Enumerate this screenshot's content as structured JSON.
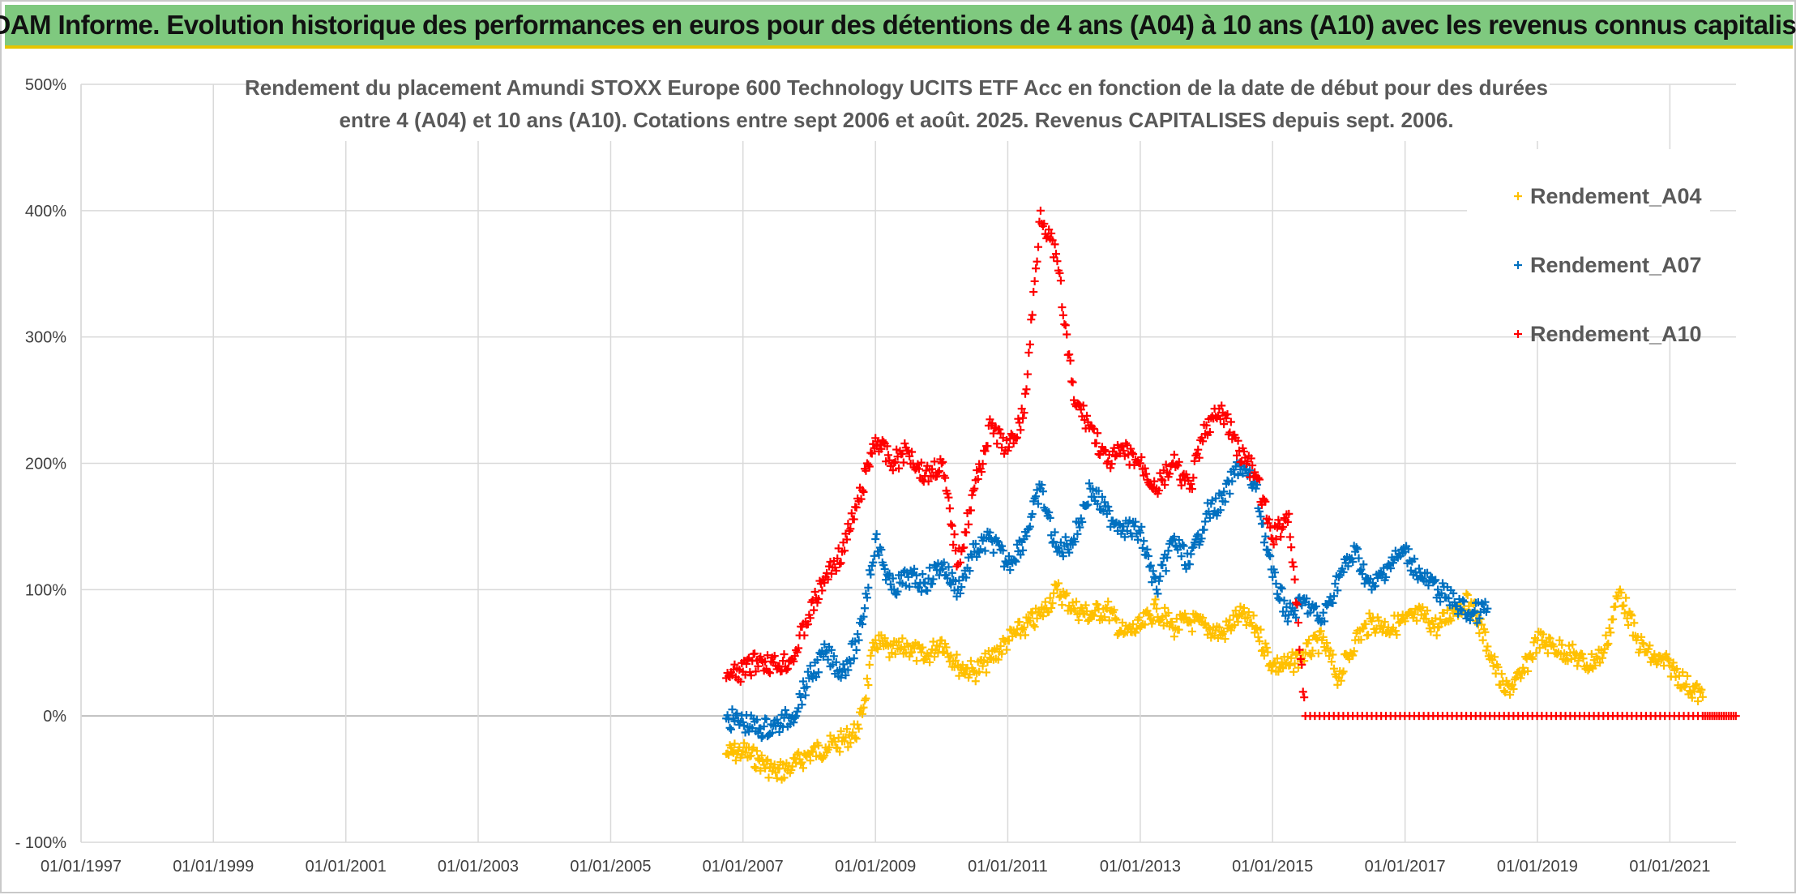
{
  "banner": {
    "title": "ADAM Informe. Evolution historique des performances en euros pour des détentions de 4 ans (A04) à 10 ans (A10) avec les revenus connus capitalisés"
  },
  "chart_data": {
    "type": "scatter",
    "title_line1": "Rendement du placement Amundi STOXX Europe 600 Technology UCITS ETF Acc en fonction de la date de début pour des durées",
    "title_line2": "entre 4 (A04) et 10 ans (A10). Cotations entre sept 2006 et août. 2025. Revenus CAPITALISES depuis sept. 2006.",
    "xlabel": "",
    "ylabel": "",
    "x_ticks": [
      "01/01/1997",
      "01/01/1999",
      "01/01/2001",
      "01/01/2003",
      "01/01/2005",
      "01/01/2007",
      "01/01/2009",
      "01/01/2011",
      "01/01/2013",
      "01/01/2015",
      "01/01/2017",
      "01/01/2019",
      "01/01/2021"
    ],
    "y_ticks": [
      "- 100%",
      "0%",
      "100%",
      "200%",
      "300%",
      "400%",
      "500%"
    ],
    "xlim": [
      "1997-01-01",
      "2022-01-01"
    ],
    "ylim": [
      -100,
      500
    ],
    "grid": true,
    "legend_position": "top-right",
    "marker": "+",
    "series": [
      {
        "name": "Rendement_A04",
        "color": "#ffc000",
        "points": [
          [
            "2006-10-01",
            -30
          ],
          [
            "2007-01-01",
            -28
          ],
          [
            "2007-04-01",
            -35
          ],
          [
            "2007-07-01",
            -45
          ],
          [
            "2007-10-01",
            -40
          ],
          [
            "2008-01-01",
            -30
          ],
          [
            "2008-04-01",
            -25
          ],
          [
            "2008-07-01",
            -20
          ],
          [
            "2008-10-01",
            -10
          ],
          [
            "2009-01-01",
            60
          ],
          [
            "2009-04-01",
            50
          ],
          [
            "2009-07-01",
            55
          ],
          [
            "2009-10-01",
            45
          ],
          [
            "2010-01-01",
            60
          ],
          [
            "2010-04-01",
            40
          ],
          [
            "2010-07-01",
            35
          ],
          [
            "2010-10-01",
            45
          ],
          [
            "2011-01-01",
            60
          ],
          [
            "2011-04-01",
            70
          ],
          [
            "2011-07-01",
            80
          ],
          [
            "2011-10-01",
            100
          ],
          [
            "2012-01-01",
            85
          ],
          [
            "2012-04-01",
            80
          ],
          [
            "2012-07-01",
            85
          ],
          [
            "2012-10-01",
            65
          ],
          [
            "2013-01-01",
            70
          ],
          [
            "2013-04-01",
            85
          ],
          [
            "2013-07-01",
            70
          ],
          [
            "2013-10-01",
            75
          ],
          [
            "2014-01-01",
            70
          ],
          [
            "2014-04-01",
            65
          ],
          [
            "2014-07-01",
            80
          ],
          [
            "2014-10-01",
            70
          ],
          [
            "2015-01-01",
            40
          ],
          [
            "2015-04-01",
            40
          ],
          [
            "2015-07-01",
            50
          ],
          [
            "2015-10-01",
            60
          ],
          [
            "2016-01-01",
            30
          ],
          [
            "2016-04-01",
            60
          ],
          [
            "2016-07-01",
            75
          ],
          [
            "2016-10-01",
            70
          ],
          [
            "2017-01-01",
            75
          ],
          [
            "2017-04-01",
            80
          ],
          [
            "2017-07-01",
            70
          ],
          [
            "2017-10-01",
            85
          ],
          [
            "2018-01-01",
            90
          ],
          [
            "2018-04-01",
            55
          ],
          [
            "2018-07-01",
            20
          ],
          [
            "2018-10-01",
            30
          ],
          [
            "2019-01-01",
            60
          ],
          [
            "2019-04-01",
            55
          ],
          [
            "2019-07-01",
            50
          ],
          [
            "2019-10-01",
            40
          ],
          [
            "2020-01-01",
            50
          ],
          [
            "2020-04-01",
            100
          ],
          [
            "2020-07-01",
            60
          ],
          [
            "2020-10-01",
            45
          ],
          [
            "2021-01-01",
            40
          ],
          [
            "2021-04-01",
            25
          ],
          [
            "2021-07-01",
            15
          ]
        ]
      },
      {
        "name": "Rendement_A07",
        "color": "#0070c0",
        "points": [
          [
            "2006-10-01",
            -2
          ],
          [
            "2007-01-01",
            -5
          ],
          [
            "2007-04-01",
            -10
          ],
          [
            "2007-07-01",
            -8
          ],
          [
            "2007-10-01",
            0
          ],
          [
            "2008-01-01",
            30
          ],
          [
            "2008-04-01",
            50
          ],
          [
            "2008-07-01",
            35
          ],
          [
            "2008-10-01",
            60
          ],
          [
            "2009-01-01",
            140
          ],
          [
            "2009-04-01",
            100
          ],
          [
            "2009-07-01",
            110
          ],
          [
            "2009-10-01",
            105
          ],
          [
            "2010-01-01",
            120
          ],
          [
            "2010-04-01",
            100
          ],
          [
            "2010-07-01",
            130
          ],
          [
            "2010-10-01",
            140
          ],
          [
            "2011-01-01",
            120
          ],
          [
            "2011-04-01",
            140
          ],
          [
            "2011-07-01",
            180
          ],
          [
            "2011-10-01",
            130
          ],
          [
            "2012-01-01",
            140
          ],
          [
            "2012-04-01",
            180
          ],
          [
            "2012-07-01",
            160
          ],
          [
            "2012-10-01",
            150
          ],
          [
            "2013-01-01",
            145
          ],
          [
            "2013-04-01",
            100
          ],
          [
            "2013-07-01",
            140
          ],
          [
            "2013-10-01",
            120
          ],
          [
            "2014-01-01",
            160
          ],
          [
            "2014-04-01",
            170
          ],
          [
            "2014-07-01",
            200
          ],
          [
            "2014-10-01",
            180
          ],
          [
            "2015-01-01",
            110
          ],
          [
            "2015-04-01",
            80
          ],
          [
            "2015-07-01",
            90
          ],
          [
            "2015-10-01",
            75
          ],
          [
            "2016-01-01",
            110
          ],
          [
            "2016-04-01",
            130
          ],
          [
            "2016-07-01",
            100
          ],
          [
            "2016-10-01",
            120
          ],
          [
            "2017-01-01",
            130
          ],
          [
            "2017-04-01",
            110
          ],
          [
            "2017-07-01",
            100
          ],
          [
            "2017-10-01",
            90
          ],
          [
            "2018-01-01",
            80
          ],
          [
            "2018-04-01",
            85
          ]
        ]
      },
      {
        "name": "Rendement_A10",
        "color": "#ff0000",
        "points": [
          [
            "2006-10-01",
            30
          ],
          [
            "2007-01-01",
            35
          ],
          [
            "2007-04-01",
            45
          ],
          [
            "2007-07-01",
            40
          ],
          [
            "2007-10-01",
            45
          ],
          [
            "2008-01-01",
            80
          ],
          [
            "2008-04-01",
            110
          ],
          [
            "2008-07-01",
            130
          ],
          [
            "2008-10-01",
            170
          ],
          [
            "2009-01-01",
            220
          ],
          [
            "2009-04-01",
            200
          ],
          [
            "2009-07-01",
            210
          ],
          [
            "2009-10-01",
            190
          ],
          [
            "2010-01-01",
            200
          ],
          [
            "2010-04-01",
            120
          ],
          [
            "2010-07-01",
            180
          ],
          [
            "2010-10-01",
            230
          ],
          [
            "2011-01-01",
            210
          ],
          [
            "2011-04-01",
            240
          ],
          [
            "2011-07-01",
            400
          ],
          [
            "2011-10-01",
            360
          ],
          [
            "2012-01-01",
            250
          ],
          [
            "2012-04-01",
            230
          ],
          [
            "2012-07-01",
            200
          ],
          [
            "2012-10-01",
            210
          ],
          [
            "2013-01-01",
            200
          ],
          [
            "2013-04-01",
            180
          ],
          [
            "2013-07-01",
            200
          ],
          [
            "2013-10-01",
            180
          ],
          [
            "2014-01-01",
            230
          ],
          [
            "2014-04-01",
            240
          ],
          [
            "2014-07-01",
            210
          ],
          [
            "2014-10-01",
            190
          ],
          [
            "2015-01-01",
            140
          ],
          [
            "2015-04-01",
            160
          ],
          [
            "2015-07-01",
            0
          ],
          [
            "2016-07-01",
            0
          ],
          [
            "2017-07-01",
            0
          ],
          [
            "2018-07-01",
            0
          ],
          [
            "2019-07-01",
            0
          ],
          [
            "2020-07-01",
            0
          ],
          [
            "2021-07-01",
            0
          ],
          [
            "2021-12-31",
            0
          ]
        ]
      }
    ]
  }
}
